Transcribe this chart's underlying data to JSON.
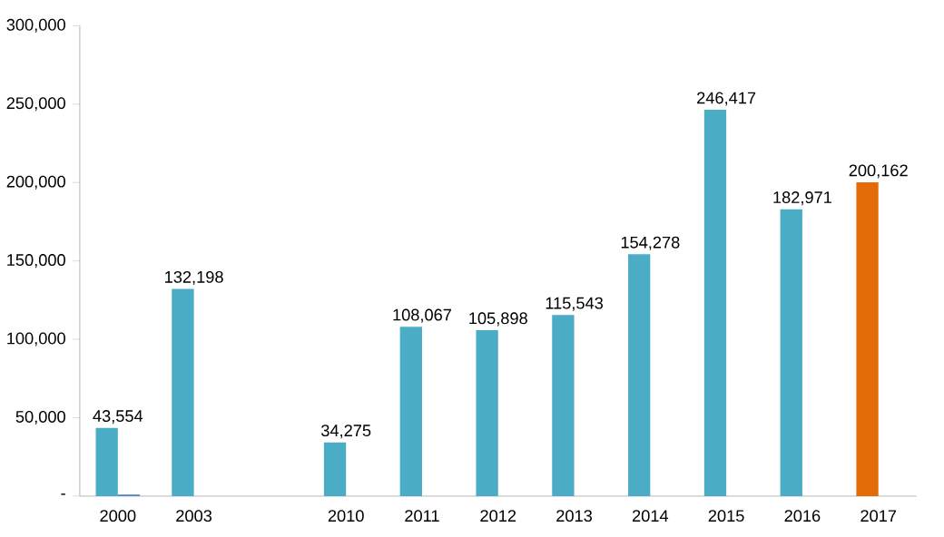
{
  "chart_data": {
    "type": "bar",
    "categories": [
      "2000",
      "2003",
      null,
      "2010",
      "2011",
      "2012",
      "2013",
      "2014",
      "2015",
      "2016",
      "2017"
    ],
    "series": [
      {
        "colors": [
          "#4bacc6",
          "#4bacc6",
          "#4bacc6",
          "#4bacc6",
          "#4bacc6",
          "#4bacc6",
          "#4bacc6",
          "#4bacc6",
          "#4bacc6",
          "#4bacc6",
          "#e36c09"
        ],
        "values": [
          43554,
          132198,
          null,
          34275,
          108067,
          105898,
          115543,
          154278,
          246417,
          182971,
          200162
        ],
        "value_labels": [
          "43,554",
          "132,198",
          null,
          "34,275",
          "108,067",
          "105,898",
          "115,543",
          "154,278",
          "246,417",
          "182,971",
          "200,162"
        ]
      },
      {
        "color": "#4f81bd",
        "values": [
          1000,
          null,
          null,
          null,
          null,
          null,
          null,
          null,
          null,
          null,
          null
        ]
      }
    ],
    "ylim": [
      0,
      300000
    ],
    "yticks": [
      {
        "value": 0,
        "label": "-"
      },
      {
        "value": 50000,
        "label": "50,000"
      },
      {
        "value": 100000,
        "label": "100,000"
      },
      {
        "value": 150000,
        "label": "150,000"
      },
      {
        "value": 200000,
        "label": "200,000"
      },
      {
        "value": 250000,
        "label": "250,000"
      },
      {
        "value": 300000,
        "label": "300,000"
      }
    ],
    "grid": false
  }
}
